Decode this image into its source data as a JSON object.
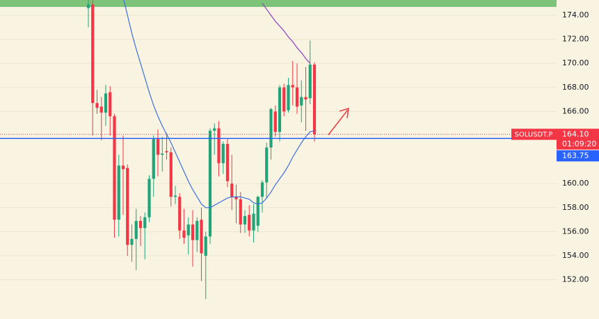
{
  "chart_data": {
    "type": "candlestick",
    "symbol": "SOLUSDT.P",
    "ylim": [
      148.74,
      175.27
    ],
    "yticks": [
      {
        "value": 152,
        "label": "152.00"
      },
      {
        "value": 154,
        "label": "154.00"
      },
      {
        "value": 156,
        "label": "156.00"
      },
      {
        "value": 158,
        "label": "158.00"
      },
      {
        "value": 160,
        "label": "160.00"
      },
      {
        "value": 166,
        "label": "166.00"
      },
      {
        "value": 168,
        "label": "168.00"
      },
      {
        "value": 170,
        "label": "170.00"
      },
      {
        "value": 172,
        "label": "172.00"
      },
      {
        "value": 174,
        "label": "174.00"
      }
    ],
    "grid": true,
    "up_color": "#22a37a",
    "down_color": "#f23645",
    "open": [
      174.6,
      174.9,
      166.7,
      166.4,
      165.9,
      167.6,
      165.6,
      157.0,
      161.5,
      161.3,
      154.9,
      155.4,
      156.9,
      156.3,
      157.2,
      160.4,
      163.7,
      162.4,
      162.7,
      162.6,
      158.9,
      158.9,
      156.1,
      155.7,
      156.6,
      155.3,
      157.0,
      154.0,
      155.6,
      164.4,
      164.6,
      161.7,
      163.3,
      160.0,
      158.9,
      158.7,
      156.6,
      157.4,
      156.1,
      156.5,
      158.9,
      160.1,
      163.0,
      166.0,
      164.3,
      168.0,
      166.1,
      168.2,
      168.0,
      166.5,
      167.2,
      167.1,
      169.9
    ],
    "high": [
      175.3,
      175.3,
      167.8,
      167.2,
      168.2,
      168.1,
      165.8,
      162.4,
      164.0,
      161.6,
      156.6,
      157.9,
      157.3,
      157.6,
      160.7,
      164.0,
      164.5,
      163.9,
      164.2,
      163.0,
      159.8,
      159.2,
      157.9,
      157.2,
      157.8,
      157.2,
      158.0,
      156.0,
      164.6,
      165.0,
      165.2,
      163.5,
      163.8,
      162.4,
      159.9,
      159.3,
      157.8,
      158.2,
      158.3,
      159.0,
      160.3,
      163.4,
      166.3,
      166.5,
      168.2,
      168.3,
      168.8,
      170.2,
      170.0,
      168.6,
      169.7,
      171.9,
      170.1
    ],
    "low": [
      173.0,
      164.0,
      165.8,
      163.6,
      164.8,
      164.0,
      155.5,
      155.6,
      157.4,
      154.0,
      153.5,
      152.8,
      154.8,
      153.7,
      156.8,
      158.9,
      160.6,
      161.0,
      162.0,
      158.1,
      158.3,
      155.4,
      155.0,
      154.1,
      153.1,
      154.3,
      151.9,
      150.4,
      155.0,
      162.4,
      160.6,
      160.8,
      159.7,
      157.8,
      156.7,
      155.9,
      155.9,
      155.6,
      155.1,
      156.0,
      157.6,
      158.8,
      162.0,
      163.9,
      163.5,
      165.6,
      165.9,
      166.5,
      165.8,
      165.1,
      164.4,
      166.6,
      163.5
    ],
    "close": [
      174.9,
      166.7,
      166.3,
      165.9,
      167.5,
      165.6,
      157.0,
      161.5,
      161.2,
      154.9,
      155.4,
      156.9,
      156.3,
      157.2,
      160.4,
      163.7,
      162.4,
      162.5,
      162.6,
      158.9,
      159.0,
      156.1,
      155.5,
      156.6,
      155.3,
      156.9,
      154.2,
      155.6,
      164.4,
      164.6,
      161.7,
      163.3,
      160.2,
      158.9,
      158.7,
      156.6,
      157.3,
      156.1,
      157.5,
      158.9,
      160.1,
      163.0,
      166.2,
      164.3,
      168.0,
      166.0,
      168.2,
      168.0,
      166.4,
      167.2,
      167.0,
      169.9,
      164.1
    ],
    "series": [
      {
        "color": "#3b6fe0",
        "values": [
          null,
          null,
          null,
          null,
          null,
          null,
          null,
          null,
          175.5,
          174.0,
          172.5,
          171.2,
          170.0,
          168.8,
          167.6,
          166.5,
          165.6,
          164.8,
          164.1,
          163.4,
          162.6,
          161.8,
          161.0,
          160.2,
          159.5,
          158.9,
          158.3,
          158.0,
          158.0,
          158.2,
          158.4,
          158.6,
          158.8,
          158.9,
          158.9,
          158.9,
          158.8,
          158.7,
          158.4,
          158.3,
          158.4,
          158.8,
          159.3,
          159.9,
          160.4,
          160.9,
          161.5,
          162.2,
          162.8,
          163.4,
          163.9,
          164.3,
          164.4
        ]
      },
      {
        "color": "#8e3fbf",
        "values": [
          null,
          null,
          null,
          null,
          null,
          null,
          null,
          null,
          null,
          null,
          null,
          null,
          null,
          null,
          null,
          null,
          null,
          null,
          null,
          null,
          null,
          null,
          null,
          null,
          null,
          null,
          null,
          null,
          null,
          null,
          null,
          null,
          null,
          null,
          null,
          null,
          null,
          null,
          null,
          null,
          175.0,
          174.5,
          174.0,
          173.5,
          173.1,
          172.7,
          172.2,
          171.8,
          171.3,
          170.9,
          170.4,
          170.0,
          null
        ]
      }
    ],
    "price_line": {
      "value": 163.75,
      "label": "163.75",
      "color": "#2962ff"
    },
    "last_price": {
      "value": 164.1,
      "label": "164.10",
      "countdown": "01:09:20"
    }
  }
}
